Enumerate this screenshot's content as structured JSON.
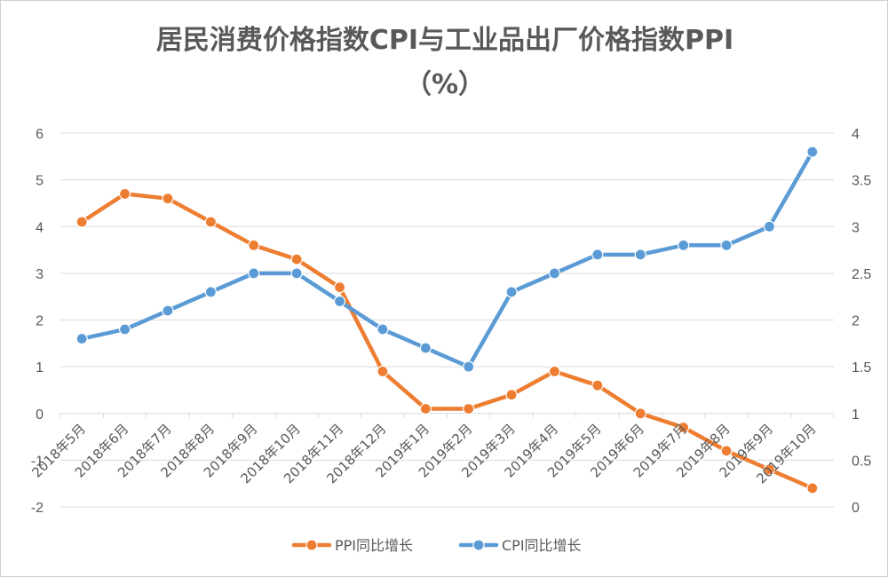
{
  "chart_data": {
    "type": "line",
    "title": "居民消费价格指数CPI与工业品出厂价格指数PPI",
    "subtitle": "（%）",
    "categories": [
      "2018年5月",
      "2018年6月",
      "2018年7月",
      "2018年8月",
      "2018年9月",
      "2018年10月",
      "2018年11月",
      "2018年12月",
      "2019年1月",
      "2019年2月",
      "2019年3月",
      "2019年4月",
      "2019年5月",
      "2019年6月",
      "2019年7月",
      "2019年8月",
      "2019年9月",
      "2019年10月"
    ],
    "y_left": {
      "min": -2,
      "max": 6,
      "ticks": [
        "-2",
        "-1",
        "0",
        "1",
        "2",
        "3",
        "4",
        "5",
        "6"
      ]
    },
    "y_right": {
      "min": 0,
      "max": 4,
      "ticks": [
        "0",
        "0.5",
        "1",
        "1.5",
        "2",
        "2.5",
        "3",
        "3.5",
        "4"
      ]
    },
    "series": [
      {
        "name": "PPI同比增长",
        "axis": "left",
        "color": "#ED7D31",
        "values": [
          4.1,
          4.7,
          4.6,
          4.1,
          3.6,
          3.3,
          2.7,
          0.9,
          0.1,
          0.1,
          0.4,
          0.9,
          0.6,
          0.0,
          -0.3,
          -0.8,
          -1.2,
          -1.6
        ]
      },
      {
        "name": "CPI同比增长",
        "axis": "right",
        "color": "#5B9BD5",
        "values": [
          1.8,
          1.9,
          2.1,
          2.3,
          2.5,
          2.5,
          2.2,
          1.9,
          1.7,
          1.5,
          2.3,
          2.5,
          2.7,
          2.7,
          2.8,
          2.8,
          3.0,
          3.8
        ]
      }
    ],
    "legend_position": "bottom"
  }
}
